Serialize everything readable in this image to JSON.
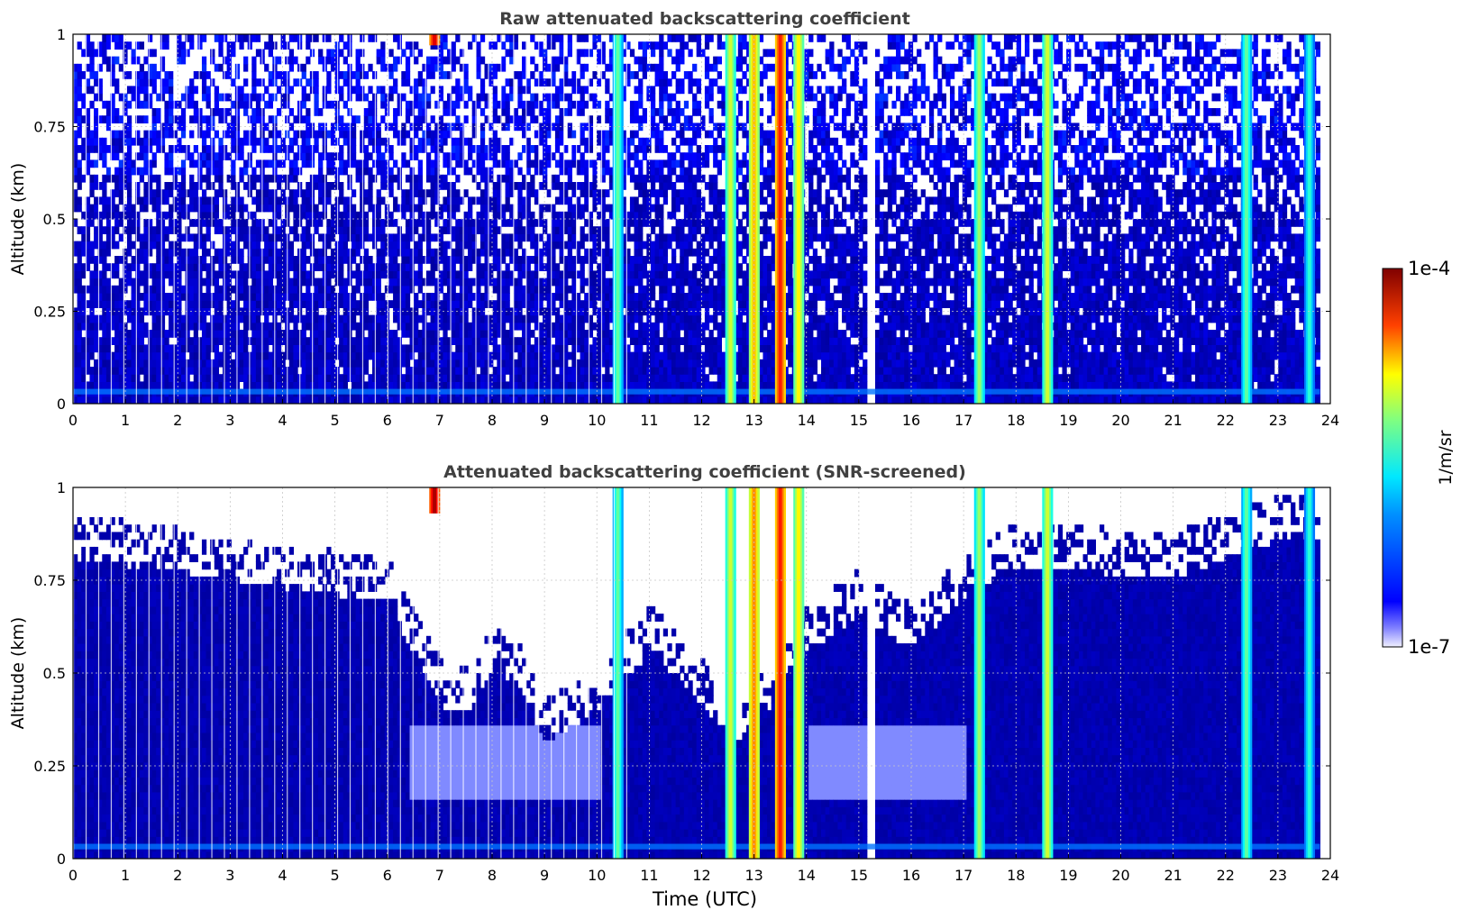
{
  "chart_data": [
    {
      "type": "heatmap",
      "title": "Raw attenuated backscattering coefficient",
      "xlabel": "",
      "ylabel": "Altitude (km)",
      "xlim": [
        0,
        24
      ],
      "ylim": [
        0,
        1
      ],
      "x_ticks": [
        "0",
        "1",
        "2",
        "3",
        "4",
        "5",
        "6",
        "7",
        "8",
        "9",
        "10",
        "11",
        "12",
        "13",
        "14",
        "15",
        "16",
        "17",
        "18",
        "19",
        "20",
        "21",
        "22",
        "23",
        "24"
      ],
      "y_ticks": [
        "0",
        "0.25",
        "0.5",
        "0.75",
        "1"
      ],
      "grid": true,
      "screened": false,
      "cloud_events": [
        {
          "time": 6.9,
          "alt_min": 0.97,
          "alt_max": 1.0,
          "level": 0.95
        },
        {
          "time": 10.4,
          "alt_min": 0.0,
          "alt_max": 1.0,
          "level": 0.55
        },
        {
          "time": 12.55,
          "alt_min": 0.0,
          "alt_max": 1.0,
          "level": 0.65
        },
        {
          "time": 13.0,
          "alt_min": 0.0,
          "alt_max": 1.0,
          "level": 0.75
        },
        {
          "time": 13.5,
          "alt_min": 0.0,
          "alt_max": 1.0,
          "level": 0.9
        },
        {
          "time": 13.85,
          "alt_min": 0.0,
          "alt_max": 1.0,
          "level": 0.7
        },
        {
          "time": 17.3,
          "alt_min": 0.0,
          "alt_max": 1.0,
          "level": 0.6
        },
        {
          "time": 18.6,
          "alt_min": 0.0,
          "alt_max": 1.0,
          "level": 0.65
        },
        {
          "time": 22.4,
          "alt_min": 0.0,
          "alt_max": 1.0,
          "level": 0.55
        },
        {
          "time": 23.6,
          "alt_min": 0.0,
          "alt_max": 1.0,
          "level": 0.5
        }
      ],
      "data_gap": [
        15.1,
        15.3
      ]
    },
    {
      "type": "heatmap",
      "title": "Attenuated backscattering coefficient (SNR-screened)",
      "xlabel": "Time (UTC)",
      "ylabel": "Altitude (km)",
      "xlim": [
        0,
        24
      ],
      "ylim": [
        0,
        1
      ],
      "x_ticks": [
        "0",
        "1",
        "2",
        "3",
        "4",
        "5",
        "6",
        "7",
        "8",
        "9",
        "10",
        "11",
        "12",
        "13",
        "14",
        "15",
        "16",
        "17",
        "18",
        "19",
        "20",
        "21",
        "22",
        "23",
        "24"
      ],
      "y_ticks": [
        "0",
        "0.25",
        "0.5",
        "0.75",
        "1"
      ],
      "grid": true,
      "screened": true,
      "valid_top_altitude": [
        [
          0,
          0.8
        ],
        [
          1,
          0.78
        ],
        [
          2,
          0.76
        ],
        [
          3,
          0.74
        ],
        [
          4,
          0.72
        ],
        [
          5,
          0.7
        ],
        [
          6,
          0.68
        ],
        [
          6.4,
          0.55
        ],
        [
          7,
          0.4
        ],
        [
          7.5,
          0.38
        ],
        [
          8,
          0.5
        ],
        [
          8.5,
          0.45
        ],
        [
          9,
          0.3
        ],
        [
          9.5,
          0.35
        ],
        [
          10,
          0.4
        ],
        [
          11,
          0.55
        ],
        [
          12,
          0.4
        ],
        [
          12.5,
          0.3
        ],
        [
          13,
          0.35
        ],
        [
          14,
          0.55
        ],
        [
          15,
          0.65
        ],
        [
          16,
          0.55
        ],
        [
          17,
          0.7
        ],
        [
          18,
          0.78
        ],
        [
          19,
          0.78
        ],
        [
          20,
          0.75
        ],
        [
          21,
          0.75
        ],
        [
          22,
          0.8
        ],
        [
          23,
          0.85
        ],
        [
          23.8,
          0.85
        ]
      ],
      "cloud_events": [
        {
          "time": 6.9,
          "alt_min": 0.93,
          "alt_max": 1.0,
          "level": 1.0
        },
        {
          "time": 10.4,
          "alt_min": 0.0,
          "alt_max": 1.0,
          "level": 0.55
        },
        {
          "time": 12.55,
          "alt_min": 0.0,
          "alt_max": 1.0,
          "level": 0.65
        },
        {
          "time": 13.0,
          "alt_min": 0.0,
          "alt_max": 1.0,
          "level": 0.8
        },
        {
          "time": 13.5,
          "alt_min": 0.0,
          "alt_max": 1.0,
          "level": 0.9
        },
        {
          "time": 13.85,
          "alt_min": 0.0,
          "alt_max": 1.0,
          "level": 0.7
        },
        {
          "time": 17.3,
          "alt_min": 0.0,
          "alt_max": 1.0,
          "level": 0.6
        },
        {
          "time": 18.6,
          "alt_min": 0.0,
          "alt_max": 1.0,
          "level": 0.65
        },
        {
          "time": 22.4,
          "alt_min": 0.0,
          "alt_max": 1.0,
          "level": 0.55
        },
        {
          "time": 23.6,
          "alt_min": 0.0,
          "alt_max": 1.0,
          "level": 0.5
        }
      ],
      "data_gap": [
        15.1,
        15.3
      ]
    }
  ],
  "colorbar": {
    "max_label": "1e-4",
    "min_label": "1e-7",
    "unit_label": "1/m/sr",
    "colormap": "jet",
    "scale": "log"
  },
  "colors": {
    "title_color": "#404040",
    "background_blue": "#1c2af0",
    "grid_color": "#c8c8c8"
  }
}
